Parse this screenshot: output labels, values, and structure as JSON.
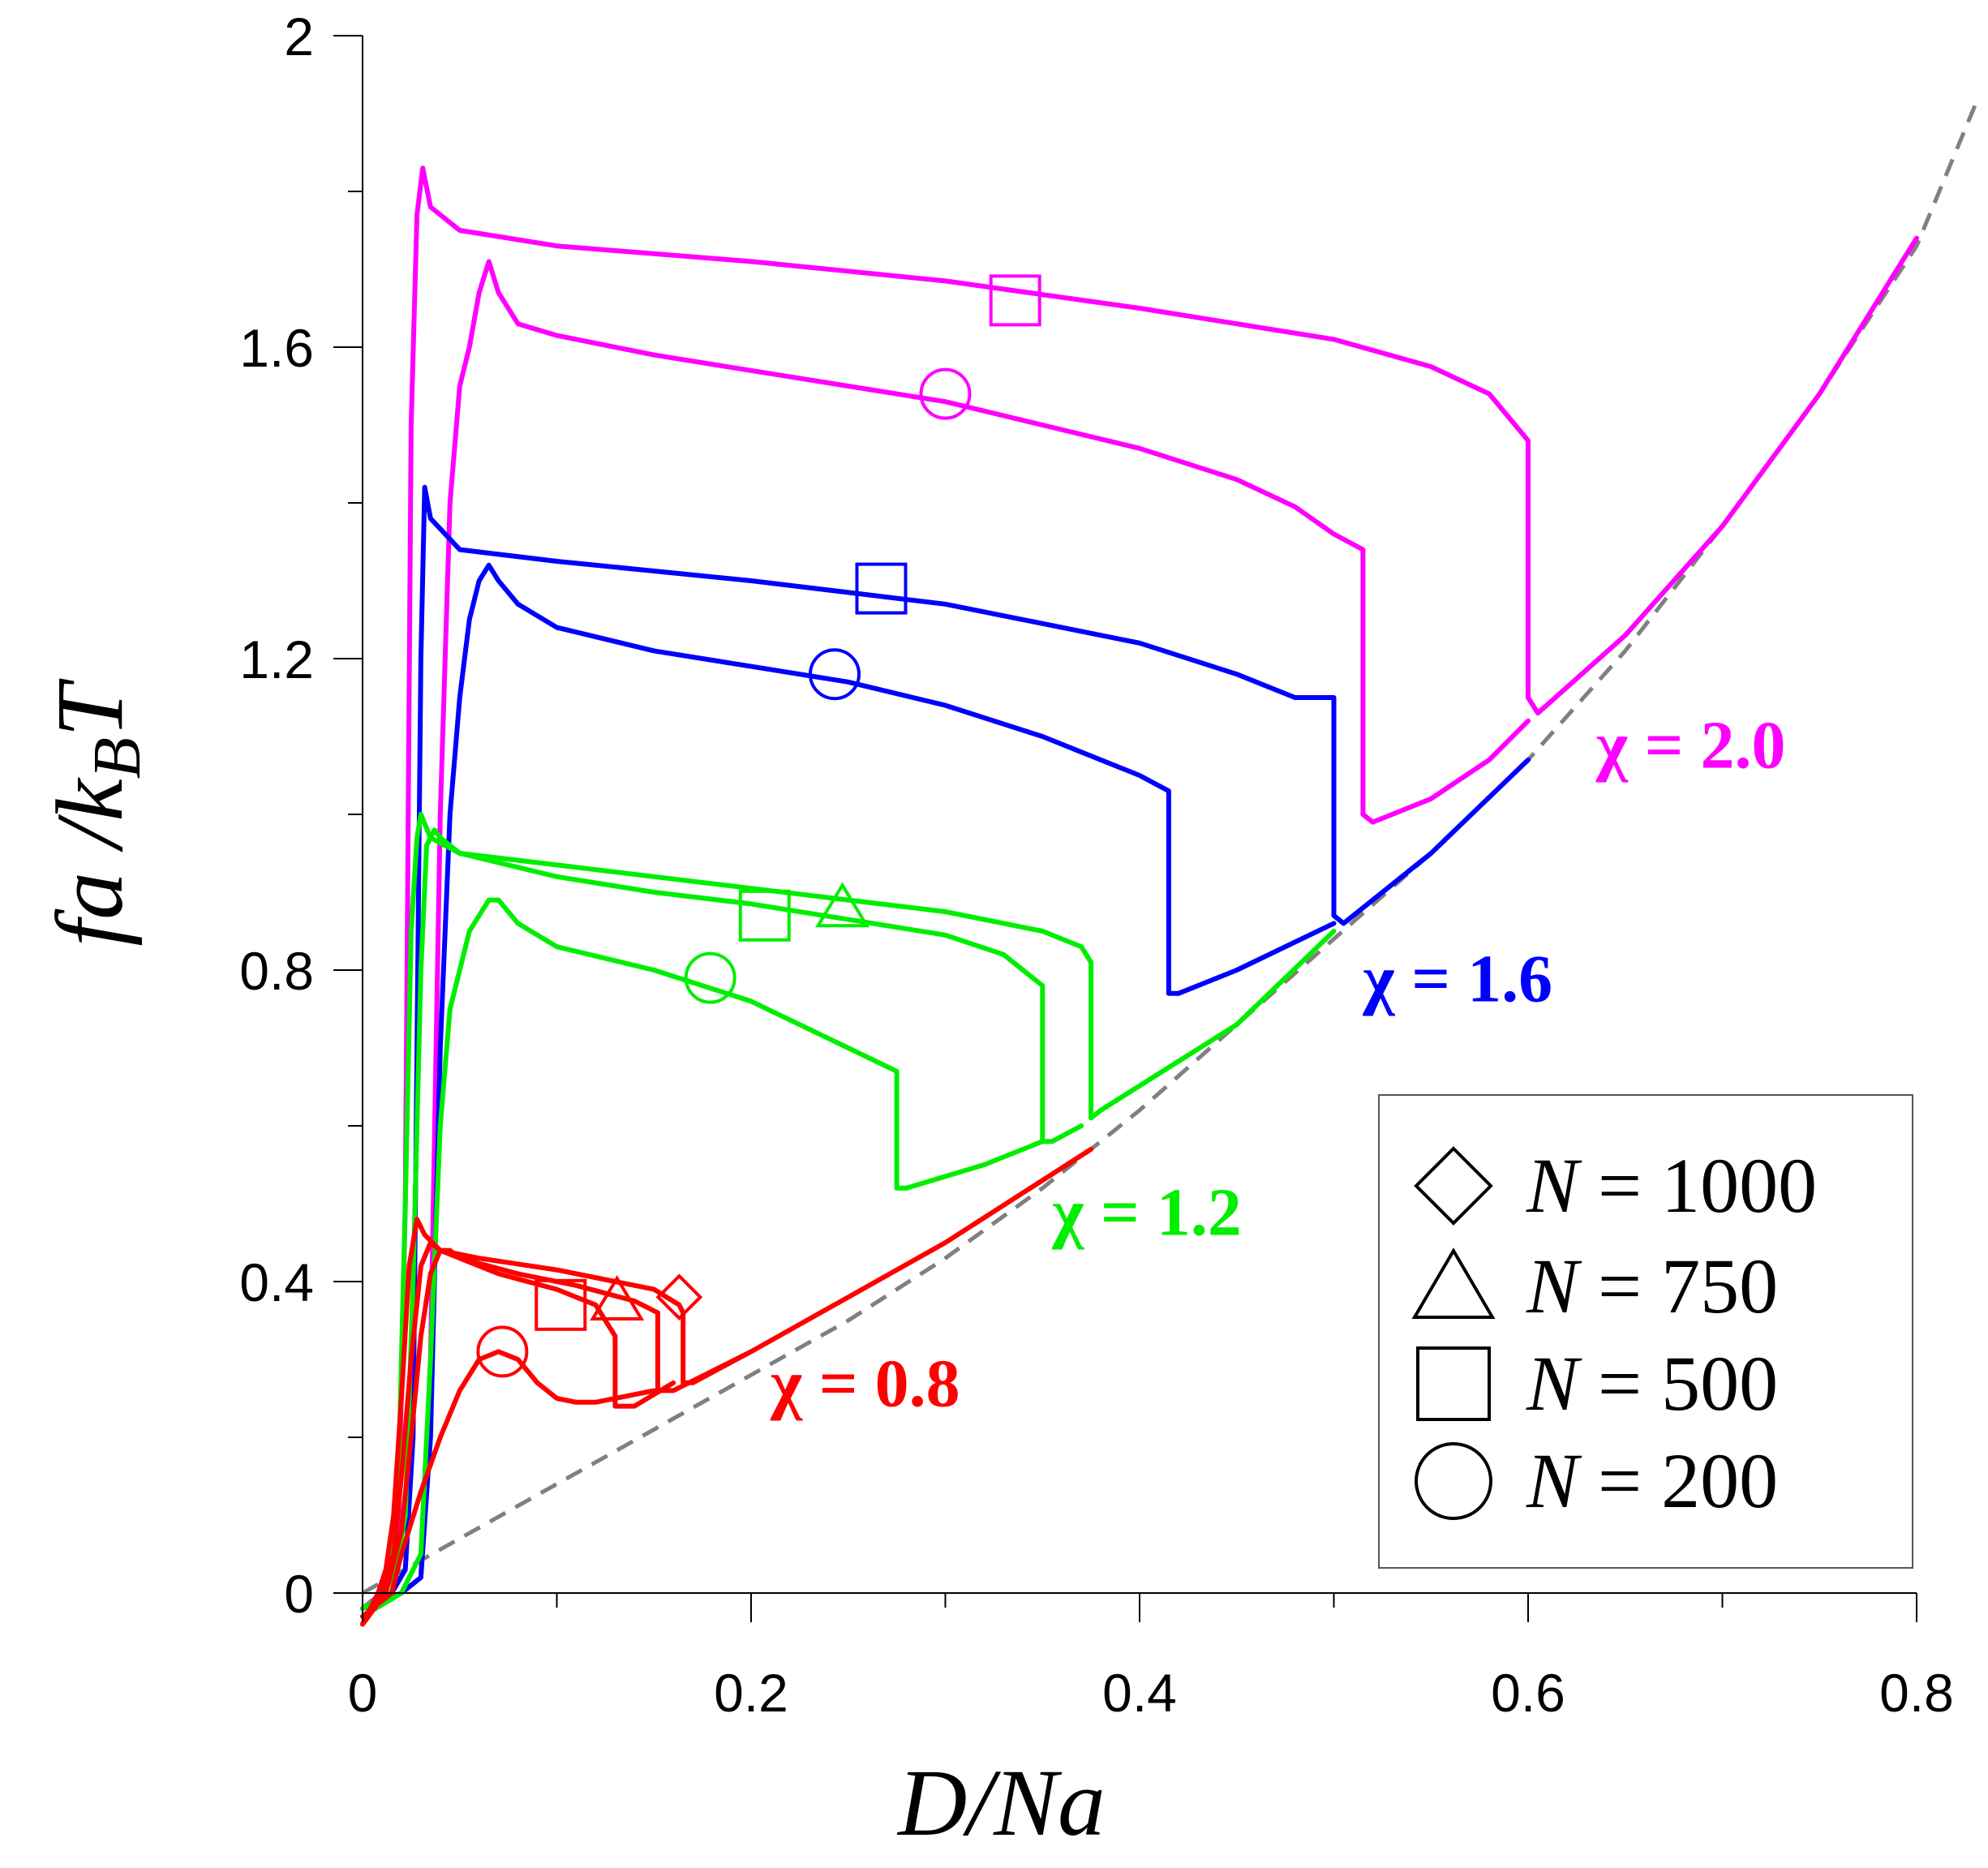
{
  "chart_data": {
    "type": "line",
    "xlabel": {
      "main": "D/Na"
    },
    "ylabel": {
      "main": "fa /k",
      "sub": "B",
      "tail": "T"
    },
    "xlim": [
      0,
      0.8
    ],
    "ylim": [
      -0.1,
      2.0
    ],
    "xticks": [
      0,
      0.2,
      0.4,
      0.6,
      0.8
    ],
    "xtick_labels": [
      "0",
      "0.2",
      "0.4",
      "0.6",
      "0.8"
    ],
    "xminor": [
      0.1,
      0.3,
      0.5,
      0.7
    ],
    "yticks": [
      0,
      0.4,
      0.8,
      1.2,
      1.6,
      2.0
    ],
    "ytick_labels": [
      "0",
      "0.4",
      "0.8",
      "1.2",
      "1.6",
      "2"
    ],
    "yminor": [
      0.2,
      0.6,
      1.0,
      1.4,
      1.8
    ],
    "colors": {
      "magenta": "#ff00ff",
      "blue": "#0000ff",
      "green": "#00ee00",
      "red": "#ff0000",
      "reference": "#808080"
    },
    "reference_curve": {
      "name": "reference",
      "style": "dashed",
      "x": [
        0,
        0.05,
        0.1,
        0.15,
        0.2,
        0.25,
        0.3,
        0.35,
        0.4,
        0.45,
        0.5,
        0.55,
        0.6,
        0.65,
        0.7,
        0.75,
        0.8,
        0.83
      ],
      "y": [
        0,
        0.07,
        0.14,
        0.21,
        0.28,
        0.35,
        0.43,
        0.52,
        0.62,
        0.73,
        0.84,
        0.95,
        1.07,
        1.21,
        1.37,
        1.54,
        1.73,
        1.91
      ]
    },
    "chi_labels": [
      {
        "text": "χ = 2.0",
        "color": "#ff00ff",
        "x": 0.635,
        "y": 1.06
      },
      {
        "text": "χ = 1.6",
        "color": "#0000ff",
        "x": 0.515,
        "y": 0.76
      },
      {
        "text": "χ = 1.2",
        "color": "#00ee00",
        "x": 0.355,
        "y": 0.46
      },
      {
        "text": "χ = 0.8",
        "color": "#ff0000",
        "x": 0.21,
        "y": 0.24
      }
    ],
    "series": [
      {
        "name": "χ = 2.0, N = 500",
        "color": "#ff00ff",
        "marker": "square",
        "marker_at": [
          0.336,
          1.66
        ],
        "x": [
          0,
          0.01,
          0.018,
          0.022,
          0.025,
          0.028,
          0.031,
          0.035,
          0.05,
          0.1,
          0.2,
          0.3,
          0.4,
          0.5,
          0.55,
          0.58,
          0.6,
          0.6,
          0.605,
          0.65,
          0.7,
          0.75,
          0.8
        ],
        "y": [
          -0.02,
          0.0,
          0.03,
          0.5,
          1.5,
          1.77,
          1.83,
          1.78,
          1.75,
          1.73,
          1.71,
          1.685,
          1.65,
          1.61,
          1.575,
          1.54,
          1.48,
          1.15,
          1.13,
          1.23,
          1.37,
          1.54,
          1.74
        ]
      },
      {
        "name": "χ = 2.0, N = 200",
        "color": "#ff00ff",
        "marker": "circle",
        "marker_at": [
          0.3,
          1.54
        ],
        "x": [
          0,
          0.02,
          0.03,
          0.035,
          0.04,
          0.045,
          0.05,
          0.055,
          0.06,
          0.065,
          0.07,
          0.08,
          0.1,
          0.15,
          0.2,
          0.25,
          0.3,
          0.35,
          0.4,
          0.45,
          0.48,
          0.5,
          0.515,
          0.515,
          0.52,
          0.55,
          0.58,
          0.6
        ],
        "y": [
          -0.02,
          0.0,
          0.02,
          0.3,
          1.0,
          1.4,
          1.55,
          1.6,
          1.67,
          1.71,
          1.67,
          1.63,
          1.615,
          1.59,
          1.57,
          1.55,
          1.53,
          1.5,
          1.47,
          1.43,
          1.395,
          1.36,
          1.34,
          1.0,
          0.99,
          1.02,
          1.07,
          1.12
        ]
      },
      {
        "name": "χ = 1.6, N = 500",
        "color": "#0000ff",
        "marker": "square",
        "marker_at": [
          0.267,
          1.29
        ],
        "x": [
          0,
          0.015,
          0.022,
          0.026,
          0.028,
          0.03,
          0.032,
          0.035,
          0.05,
          0.1,
          0.2,
          0.3,
          0.4,
          0.45,
          0.48,
          0.5,
          0.5,
          0.505,
          0.55,
          0.6
        ],
        "y": [
          -0.02,
          0.0,
          0.03,
          0.2,
          0.7,
          1.2,
          1.42,
          1.38,
          1.34,
          1.325,
          1.3,
          1.27,
          1.22,
          1.18,
          1.15,
          1.15,
          0.87,
          0.86,
          0.95,
          1.07
        ]
      },
      {
        "name": "χ = 1.6, N = 200",
        "color": "#0000ff",
        "marker": "circle",
        "marker_at": [
          0.243,
          1.18
        ],
        "x": [
          0,
          0.02,
          0.03,
          0.035,
          0.04,
          0.045,
          0.05,
          0.055,
          0.06,
          0.065,
          0.07,
          0.08,
          0.1,
          0.15,
          0.2,
          0.25,
          0.3,
          0.35,
          0.38,
          0.4,
          0.415,
          0.415,
          0.42,
          0.45,
          0.5
        ],
        "y": [
          -0.02,
          0.0,
          0.02,
          0.2,
          0.7,
          1.0,
          1.15,
          1.25,
          1.3,
          1.32,
          1.3,
          1.27,
          1.24,
          1.21,
          1.19,
          1.17,
          1.14,
          1.1,
          1.07,
          1.05,
          1.03,
          0.77,
          0.77,
          0.8,
          0.86
        ]
      },
      {
        "name": "χ = 1.2, N = 750",
        "color": "#00ee00",
        "marker": "triangle",
        "marker_at": [
          0.247,
          0.88
        ],
        "x": [
          0,
          0.012,
          0.018,
          0.022,
          0.025,
          0.028,
          0.03,
          0.035,
          0.05,
          0.1,
          0.15,
          0.2,
          0.25,
          0.3,
          0.35,
          0.37,
          0.375,
          0.375,
          0.38,
          0.45,
          0.5
        ],
        "y": [
          -0.02,
          0.0,
          0.1,
          0.5,
          0.85,
          0.97,
          1.0,
          0.97,
          0.95,
          0.935,
          0.92,
          0.905,
          0.89,
          0.875,
          0.85,
          0.83,
          0.81,
          0.61,
          0.62,
          0.73,
          0.85
        ]
      },
      {
        "name": "χ = 1.2, N = 500",
        "color": "#00ee00",
        "marker": "square",
        "marker_at": [
          0.207,
          0.87
        ],
        "x": [
          0,
          0.015,
          0.022,
          0.026,
          0.03,
          0.033,
          0.037,
          0.04,
          0.05,
          0.1,
          0.15,
          0.2,
          0.25,
          0.3,
          0.33,
          0.35,
          0.35,
          0.355,
          0.37
        ],
        "y": [
          -0.02,
          0.0,
          0.1,
          0.4,
          0.8,
          0.96,
          0.98,
          0.97,
          0.95,
          0.92,
          0.9,
          0.885,
          0.865,
          0.845,
          0.82,
          0.78,
          0.58,
          0.58,
          0.6
        ]
      },
      {
        "name": "χ = 1.2, N = 200",
        "color": "#00ee00",
        "marker": "circle",
        "marker_at": [
          0.179,
          0.79
        ],
        "x": [
          0,
          0.02,
          0.03,
          0.035,
          0.04,
          0.045,
          0.05,
          0.055,
          0.06,
          0.065,
          0.07,
          0.08,
          0.1,
          0.15,
          0.2,
          0.25,
          0.275,
          0.275,
          0.28,
          0.32,
          0.35
        ],
        "y": [
          -0.03,
          0.0,
          0.05,
          0.3,
          0.6,
          0.75,
          0.8,
          0.85,
          0.87,
          0.89,
          0.89,
          0.86,
          0.83,
          0.8,
          0.76,
          0.7,
          0.67,
          0.52,
          0.52,
          0.55,
          0.58
        ]
      },
      {
        "name": "χ = 0.8, N = 1000",
        "color": "#ff0000",
        "marker": "diamond",
        "marker_at": [
          0.163,
          0.38
        ],
        "x": [
          0,
          0.008,
          0.012,
          0.016,
          0.02,
          0.024,
          0.028,
          0.032,
          0.04,
          0.06,
          0.1,
          0.13,
          0.15,
          0.163,
          0.165,
          0.165,
          0.17,
          0.2,
          0.25,
          0.3,
          0.35,
          0.375
        ],
        "y": [
          -0.04,
          0.0,
          0.03,
          0.1,
          0.25,
          0.42,
          0.48,
          0.46,
          0.44,
          0.43,
          0.415,
          0.4,
          0.39,
          0.37,
          0.36,
          0.27,
          0.27,
          0.31,
          0.38,
          0.45,
          0.53,
          0.57
        ]
      },
      {
        "name": "χ = 0.8, N = 750",
        "color": "#ff0000",
        "marker": "triangle",
        "marker_at": [
          0.131,
          0.375
        ],
        "x": [
          0,
          0.01,
          0.016,
          0.02,
          0.025,
          0.03,
          0.035,
          0.04,
          0.05,
          0.08,
          0.11,
          0.14,
          0.152,
          0.152,
          0.16,
          0.2
        ],
        "y": [
          -0.04,
          0.0,
          0.05,
          0.15,
          0.3,
          0.42,
          0.45,
          0.44,
          0.43,
          0.41,
          0.395,
          0.375,
          0.36,
          0.26,
          0.26,
          0.31
        ]
      },
      {
        "name": "χ = 0.8, N = 500",
        "color": "#ff0000",
        "marker": "square",
        "marker_at": [
          0.102,
          0.37
        ],
        "x": [
          0,
          0.012,
          0.02,
          0.025,
          0.03,
          0.035,
          0.04,
          0.045,
          0.05,
          0.07,
          0.1,
          0.12,
          0.13,
          0.13,
          0.14,
          0.16
        ],
        "y": [
          -0.04,
          0.0,
          0.08,
          0.2,
          0.33,
          0.41,
          0.44,
          0.44,
          0.43,
          0.41,
          0.39,
          0.37,
          0.33,
          0.24,
          0.24,
          0.27
        ]
      },
      {
        "name": "χ = 0.8, N = 200",
        "color": "#ff0000",
        "marker": "circle",
        "marker_at": [
          0.072,
          0.31
        ],
        "x": [
          0,
          0.015,
          0.02,
          0.03,
          0.04,
          0.05,
          0.06,
          0.07,
          0.08,
          0.09,
          0.1,
          0.11,
          0.12,
          0.13,
          0.15
        ],
        "y": [
          -0.03,
          0.0,
          0.05,
          0.13,
          0.2,
          0.26,
          0.3,
          0.31,
          0.3,
          0.27,
          0.25,
          0.245,
          0.245,
          0.25,
          0.26
        ]
      }
    ],
    "legend": {
      "position": "bottom-right",
      "entries": [
        {
          "marker": "diamond",
          "label_var": "N",
          "label_rest": " = 1000"
        },
        {
          "marker": "triangle",
          "label_var": "N",
          "label_rest": " = 750"
        },
        {
          "marker": "square",
          "label_var": "N",
          "label_rest": " = 500"
        },
        {
          "marker": "circle",
          "label_var": "N",
          "label_rest": " = 200"
        }
      ]
    }
  }
}
